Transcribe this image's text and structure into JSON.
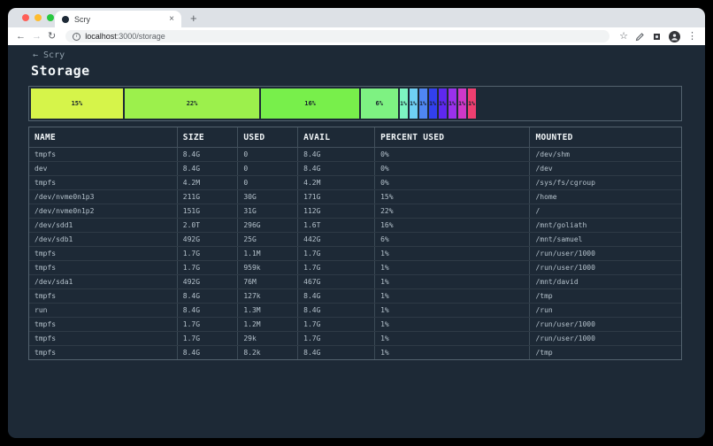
{
  "browser": {
    "tab_title": "Scry",
    "url_host": "localhost",
    "url_path": ":3000/storage"
  },
  "icons": {
    "back_arrow": "←",
    "forward_arrow": "→",
    "refresh": "↻",
    "star": "☆",
    "menu_dots": "⋮",
    "tab_close": "×",
    "new_tab": "+",
    "info": "i",
    "back_link_arrow": "←"
  },
  "page": {
    "back_link_label": "Scry",
    "title": "Storage"
  },
  "chart_data": {
    "type": "bar",
    "variant": "stacked-horizontal-usage",
    "unit": "%",
    "xlim": [
      0,
      100
    ],
    "background": "#1d2936",
    "segments": [
      {
        "label": "15%",
        "value": 15,
        "color": "#d6f44a"
      },
      {
        "label": "22%",
        "value": 22,
        "color": "#9cf04c"
      },
      {
        "label": "16%",
        "value": 16,
        "color": "#78ef4b"
      },
      {
        "label": "6%",
        "value": 6,
        "color": "#7ef282"
      },
      {
        "label": "1%",
        "value": 1,
        "color": "#7df5c1"
      },
      {
        "label": "1%",
        "value": 1,
        "color": "#6fd0f4"
      },
      {
        "label": "1%",
        "value": 1,
        "color": "#4f86f2"
      },
      {
        "label": "1%",
        "value": 1,
        "color": "#3240ee"
      },
      {
        "label": "1%",
        "value": 1,
        "color": "#5e28f0"
      },
      {
        "label": "1%",
        "value": 1,
        "color": "#9a31eb"
      },
      {
        "label": "1%",
        "value": 1,
        "color": "#ce38c8"
      },
      {
        "label": "1%",
        "value": 1,
        "color": "#ee3f70"
      }
    ]
  },
  "table": {
    "columns": [
      "NAME",
      "SIZE",
      "USED",
      "AVAIL",
      "PERCENT USED",
      "MOUNTED"
    ],
    "rows": [
      [
        "tmpfs",
        "8.4G",
        "0",
        "8.4G",
        "0%",
        "/dev/shm"
      ],
      [
        "dev",
        "8.4G",
        "0",
        "8.4G",
        "0%",
        "/dev"
      ],
      [
        "tmpfs",
        "4.2M",
        "0",
        "4.2M",
        "0%",
        "/sys/fs/cgroup"
      ],
      [
        "/dev/nvme0n1p3",
        "211G",
        "30G",
        "171G",
        "15%",
        "/home"
      ],
      [
        "/dev/nvme0n1p2",
        "151G",
        "31G",
        "112G",
        "22%",
        "/"
      ],
      [
        "/dev/sdd1",
        "2.0T",
        "296G",
        "1.6T",
        "16%",
        "/mnt/goliath"
      ],
      [
        "/dev/sdb1",
        "492G",
        "25G",
        "442G",
        "6%",
        "/mnt/samuel"
      ],
      [
        "tmpfs",
        "1.7G",
        "1.1M",
        "1.7G",
        "1%",
        "/run/user/1000"
      ],
      [
        "tmpfs",
        "1.7G",
        "959k",
        "1.7G",
        "1%",
        "/run/user/1000"
      ],
      [
        "/dev/sda1",
        "492G",
        "76M",
        "467G",
        "1%",
        "/mnt/david"
      ],
      [
        "tmpfs",
        "8.4G",
        "127k",
        "8.4G",
        "1%",
        "/tmp"
      ],
      [
        "run",
        "8.4G",
        "1.3M",
        "8.4G",
        "1%",
        "/run"
      ],
      [
        "tmpfs",
        "1.7G",
        "1.2M",
        "1.7G",
        "1%",
        "/run/user/1000"
      ],
      [
        "tmpfs",
        "1.7G",
        "29k",
        "1.7G",
        "1%",
        "/run/user/1000"
      ],
      [
        "tmpfs",
        "8.4G",
        "8.2k",
        "8.4G",
        "1%",
        "/tmp"
      ]
    ]
  }
}
